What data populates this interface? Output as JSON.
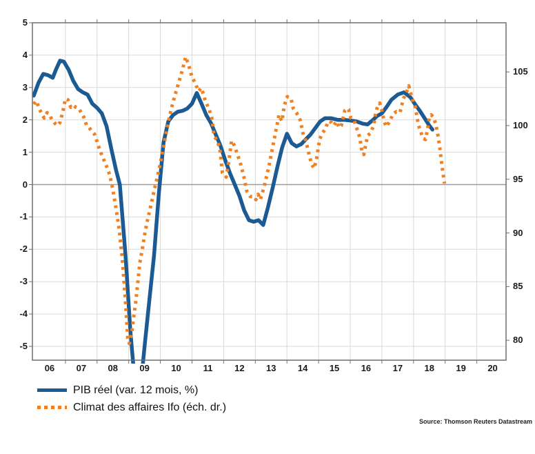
{
  "source_label": "Source: Thomson Reuters Datastream",
  "colors": {
    "gdp_line": "#1b5a93",
    "ifo_line": "#f08122",
    "grid": "#d9d9d9",
    "zero_line": "#9b9b9b",
    "frame": "#6f6f6f",
    "text": "#1a1a1a"
  },
  "chart_data": {
    "type": "line",
    "title": "",
    "source": "Source: Thomson Reuters Datastream",
    "legend_position": "bottom-left",
    "grid": true,
    "x_axis": {
      "labels": [
        "06",
        "07",
        "08",
        "09",
        "10",
        "11",
        "12",
        "13",
        "14",
        "15",
        "16",
        "17",
        "18",
        "19",
        "20"
      ],
      "label_years": [
        2006,
        2007,
        2008,
        2009,
        2010,
        2011,
        2012,
        2013,
        2014,
        2015,
        2016,
        2017,
        2018,
        2019,
        2020
      ],
      "domain": [
        2006.0,
        2020.92
      ]
    },
    "left_axis": {
      "ticks": [
        5,
        4,
        3,
        2,
        1,
        0,
        -1,
        -2,
        -3,
        -4,
        -5
      ],
      "domain": [
        5,
        -5.43
      ],
      "units": "%"
    },
    "right_axis": {
      "ticks": [
        105,
        100,
        95,
        90,
        85,
        80
      ],
      "domain": [
        109.6,
        78.1
      ],
      "units": "index"
    },
    "series": [
      {
        "name": "PIB réel (var. 12 mois, %)",
        "axis": "left",
        "style": "solid",
        "color": "#1b5a93",
        "points": [
          [
            2006.0,
            2.75
          ],
          [
            2006.15,
            3.15
          ],
          [
            2006.3,
            3.42
          ],
          [
            2006.45,
            3.38
          ],
          [
            2006.6,
            3.3
          ],
          [
            2006.7,
            3.55
          ],
          [
            2006.83,
            3.83
          ],
          [
            2006.95,
            3.8
          ],
          [
            2007.1,
            3.55
          ],
          [
            2007.25,
            3.2
          ],
          [
            2007.4,
            2.95
          ],
          [
            2007.55,
            2.85
          ],
          [
            2007.7,
            2.78
          ],
          [
            2007.85,
            2.5
          ],
          [
            2008.0,
            2.37
          ],
          [
            2008.15,
            2.2
          ],
          [
            2008.3,
            1.8
          ],
          [
            2008.45,
            1.1
          ],
          [
            2008.6,
            0.45
          ],
          [
            2008.72,
            0.0
          ],
          [
            2008.9,
            -2.2
          ],
          [
            2009.05,
            -4.5
          ],
          [
            2009.2,
            -6.2
          ],
          [
            2009.35,
            -6.5
          ],
          [
            2009.5,
            -5.0
          ],
          [
            2009.65,
            -3.6
          ],
          [
            2009.8,
            -2.2
          ],
          [
            2009.95,
            -0.3
          ],
          [
            2010.1,
            1.3
          ],
          [
            2010.25,
            1.95
          ],
          [
            2010.4,
            2.15
          ],
          [
            2010.55,
            2.25
          ],
          [
            2010.7,
            2.28
          ],
          [
            2010.85,
            2.35
          ],
          [
            2011.0,
            2.5
          ],
          [
            2011.15,
            2.83
          ],
          [
            2011.3,
            2.5
          ],
          [
            2011.45,
            2.15
          ],
          [
            2011.6,
            1.9
          ],
          [
            2011.75,
            1.55
          ],
          [
            2011.9,
            1.2
          ],
          [
            2012.05,
            0.75
          ],
          [
            2012.2,
            0.35
          ],
          [
            2012.35,
            0.0
          ],
          [
            2012.5,
            -0.35
          ],
          [
            2012.65,
            -0.8
          ],
          [
            2012.8,
            -1.1
          ],
          [
            2012.95,
            -1.15
          ],
          [
            2013.1,
            -1.1
          ],
          [
            2013.25,
            -1.25
          ],
          [
            2013.4,
            -0.7
          ],
          [
            2013.55,
            -0.1
          ],
          [
            2013.7,
            0.55
          ],
          [
            2013.85,
            1.15
          ],
          [
            2014.0,
            1.57
          ],
          [
            2014.15,
            1.28
          ],
          [
            2014.3,
            1.18
          ],
          [
            2014.45,
            1.25
          ],
          [
            2014.6,
            1.4
          ],
          [
            2014.75,
            1.55
          ],
          [
            2014.9,
            1.75
          ],
          [
            2015.05,
            1.95
          ],
          [
            2015.2,
            2.05
          ],
          [
            2015.4,
            2.05
          ],
          [
            2015.6,
            2.0
          ],
          [
            2015.8,
            2.0
          ],
          [
            2016.0,
            1.98
          ],
          [
            2016.2,
            1.95
          ],
          [
            2016.4,
            1.88
          ],
          [
            2016.55,
            1.86
          ],
          [
            2016.7,
            1.98
          ],
          [
            2016.85,
            2.12
          ],
          [
            2017.0,
            2.2
          ],
          [
            2017.15,
            2.4
          ],
          [
            2017.3,
            2.62
          ],
          [
            2017.5,
            2.78
          ],
          [
            2017.7,
            2.85
          ],
          [
            2017.9,
            2.7
          ],
          [
            2018.05,
            2.48
          ],
          [
            2018.2,
            2.28
          ],
          [
            2018.35,
            2.05
          ],
          [
            2018.5,
            1.82
          ],
          [
            2018.6,
            1.7
          ]
        ]
      },
      {
        "name": "Climat des affaires Ifo (éch. dr.)",
        "axis": "right",
        "style": "dotted",
        "color": "#f08122",
        "points": [
          [
            2006.0,
            102.0
          ],
          [
            2006.08,
            102.3
          ],
          [
            2006.17,
            101.6
          ],
          [
            2006.25,
            101.1
          ],
          [
            2006.33,
            100.7
          ],
          [
            2006.42,
            101.2
          ],
          [
            2006.5,
            101.0
          ],
          [
            2006.58,
            100.5
          ],
          [
            2006.67,
            100.2
          ],
          [
            2006.75,
            100.0
          ],
          [
            2006.83,
            100.3
          ],
          [
            2006.92,
            101.3
          ],
          [
            2007.0,
            102.5
          ],
          [
            2007.08,
            102.4
          ],
          [
            2007.17,
            101.7
          ],
          [
            2007.25,
            101.9
          ],
          [
            2007.33,
            101.7
          ],
          [
            2007.42,
            101.6
          ],
          [
            2007.5,
            101.2
          ],
          [
            2007.58,
            100.8
          ],
          [
            2007.67,
            100.0
          ],
          [
            2007.75,
            99.8
          ],
          [
            2007.83,
            99.5
          ],
          [
            2007.92,
            99.2
          ],
          [
            2008.0,
            98.5
          ],
          [
            2008.1,
            97.6
          ],
          [
            2008.2,
            96.9
          ],
          [
            2008.3,
            96.2
          ],
          [
            2008.4,
            95.4
          ],
          [
            2008.5,
            94.0
          ],
          [
            2008.6,
            92.3
          ],
          [
            2008.7,
            90.3
          ],
          [
            2008.8,
            87.5
          ],
          [
            2008.9,
            83.5
          ],
          [
            2008.97,
            80.2
          ],
          [
            2009.02,
            79.7
          ],
          [
            2009.1,
            80.8
          ],
          [
            2009.16,
            82.2
          ],
          [
            2009.22,
            83.5
          ],
          [
            2009.28,
            85.2
          ],
          [
            2009.35,
            87.2
          ],
          [
            2009.43,
            88.5
          ],
          [
            2009.5,
            89.8
          ],
          [
            2009.58,
            91.0
          ],
          [
            2009.67,
            92.2
          ],
          [
            2009.75,
            93.2
          ],
          [
            2009.83,
            94.3
          ],
          [
            2009.92,
            95.4
          ],
          [
            2010.0,
            96.5
          ],
          [
            2010.1,
            98.0
          ],
          [
            2010.2,
            99.6
          ],
          [
            2010.3,
            101.0
          ],
          [
            2010.4,
            102.2
          ],
          [
            2010.5,
            103.2
          ],
          [
            2010.6,
            104.2
          ],
          [
            2010.7,
            105.2
          ],
          [
            2010.8,
            106.4
          ],
          [
            2010.9,
            105.6
          ],
          [
            2011.0,
            104.5
          ],
          [
            2011.1,
            104.0
          ],
          [
            2011.2,
            103.2
          ],
          [
            2011.3,
            103.5
          ],
          [
            2011.42,
            102.3
          ],
          [
            2011.53,
            101.6
          ],
          [
            2011.62,
            100.8
          ],
          [
            2011.7,
            99.0
          ],
          [
            2011.8,
            98.6
          ],
          [
            2011.88,
            97.8
          ],
          [
            2011.96,
            95.6
          ],
          [
            2012.08,
            95.2
          ],
          [
            2012.17,
            96.8
          ],
          [
            2012.25,
            98.6
          ],
          [
            2012.33,
            98.2
          ],
          [
            2012.45,
            97.2
          ],
          [
            2012.55,
            96.3
          ],
          [
            2012.64,
            95.2
          ],
          [
            2012.73,
            93.9
          ],
          [
            2012.84,
            93.4
          ],
          [
            2012.95,
            93.4
          ],
          [
            2013.02,
            93.1
          ],
          [
            2013.09,
            93.6
          ],
          [
            2013.16,
            93.1
          ],
          [
            2013.27,
            94.2
          ],
          [
            2013.35,
            95.2
          ],
          [
            2013.45,
            96.5
          ],
          [
            2013.55,
            98.0
          ],
          [
            2013.65,
            99.5
          ],
          [
            2013.75,
            101.0
          ],
          [
            2013.84,
            100.4
          ],
          [
            2013.92,
            101.9
          ],
          [
            2014.01,
            102.7
          ],
          [
            2014.13,
            102.5
          ],
          [
            2014.2,
            101.6
          ],
          [
            2014.3,
            101.2
          ],
          [
            2014.42,
            100.5
          ],
          [
            2014.52,
            99.1
          ],
          [
            2014.6,
            98.6
          ],
          [
            2014.7,
            97.3
          ],
          [
            2014.78,
            96.4
          ],
          [
            2014.86,
            96.0
          ],
          [
            2014.93,
            96.8
          ],
          [
            2015.03,
            98.7
          ],
          [
            2015.12,
            99.3
          ],
          [
            2015.22,
            99.7
          ],
          [
            2015.3,
            100.4
          ],
          [
            2015.4,
            100.3
          ],
          [
            2015.47,
            100.0
          ],
          [
            2015.57,
            100.4
          ],
          [
            2015.65,
            99.8
          ],
          [
            2015.72,
            100.0
          ],
          [
            2015.83,
            101.4
          ],
          [
            2015.9,
            101.6
          ],
          [
            2015.95,
            101.5
          ],
          [
            2016.02,
            100.7
          ],
          [
            2016.12,
            100.5
          ],
          [
            2016.2,
            99.8
          ],
          [
            2016.3,
            98.9
          ],
          [
            2016.38,
            97.4
          ],
          [
            2016.43,
            97.3
          ],
          [
            2016.5,
            98.4
          ],
          [
            2016.56,
            99.1
          ],
          [
            2016.64,
            99.3
          ],
          [
            2016.74,
            100.0
          ],
          [
            2016.81,
            101.3
          ],
          [
            2016.88,
            101.9
          ],
          [
            2016.93,
            102.1
          ],
          [
            2017.0,
            101.4
          ],
          [
            2017.08,
            100.3
          ],
          [
            2017.14,
            99.9
          ],
          [
            2017.25,
            100.4
          ],
          [
            2017.35,
            101.1
          ],
          [
            2017.46,
            101.3
          ],
          [
            2017.57,
            101.2
          ],
          [
            2017.68,
            102.5
          ],
          [
            2017.79,
            103.2
          ],
          [
            2017.85,
            103.7
          ],
          [
            2017.94,
            102.7
          ],
          [
            2018.0,
            102.1
          ],
          [
            2018.06,
            101.7
          ],
          [
            2018.15,
            100.1
          ],
          [
            2018.22,
            99.5
          ],
          [
            2018.3,
            98.8
          ],
          [
            2018.38,
            98.7
          ],
          [
            2018.45,
            99.8
          ],
          [
            2018.5,
            100.8
          ],
          [
            2018.56,
            101.0
          ],
          [
            2018.62,
            100.8
          ],
          [
            2018.7,
            100.2
          ],
          [
            2018.76,
            99.3
          ],
          [
            2018.82,
            98.2
          ],
          [
            2018.87,
            97.0
          ],
          [
            2018.92,
            95.8
          ],
          [
            2018.98,
            94.6
          ]
        ]
      }
    ]
  }
}
